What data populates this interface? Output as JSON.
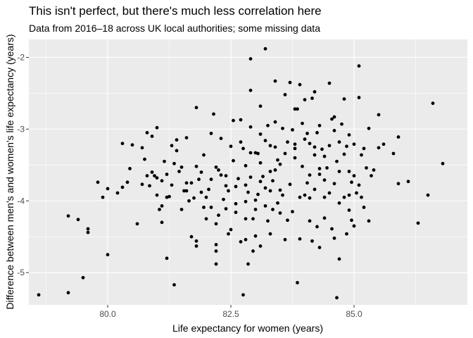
{
  "chart_data": {
    "type": "scatter",
    "title": "This isn't perfect, but there's much less correlation here",
    "subtitle": "Data from 2016–18 across UK local authorities; some missing data",
    "xlabel": "Life expectancy for women (years)",
    "ylabel": "Difference between men's and women's life expectancy (years)",
    "xlim": [
      78.4,
      87.3
    ],
    "ylim": [
      -5.45,
      -1.75
    ],
    "xticks": [
      80.0,
      82.5,
      85.0
    ],
    "xtick_labels": [
      "80.0",
      "82.5",
      "85.0"
    ],
    "yticks": [
      -5,
      -4,
      -3,
      -2
    ],
    "ytick_labels": [
      "-5",
      "-4",
      "-3",
      "-2"
    ],
    "grid": true,
    "legend": "none",
    "points": [
      [
        78.6,
        -5.31
      ],
      [
        79.2,
        -5.28
      ],
      [
        79.5,
        -5.07
      ],
      [
        79.2,
        -4.21
      ],
      [
        79.6,
        -4.39
      ],
      [
        79.6,
        -4.44
      ],
      [
        79.9,
        -3.95
      ],
      [
        79.8,
        -3.74
      ],
      [
        80.0,
        -3.83
      ],
      [
        79.4,
        -4.26
      ],
      [
        80.0,
        -4.75
      ],
      [
        80.2,
        -3.89
      ],
      [
        80.3,
        -3.2
      ],
      [
        80.3,
        -3.81
      ],
      [
        80.4,
        -3.74
      ],
      [
        80.5,
        -3.22
      ],
      [
        80.6,
        -4.32
      ],
      [
        80.7,
        -3.26
      ],
      [
        80.7,
        -3.77
      ],
      [
        80.8,
        -3.05
      ],
      [
        80.8,
        -3.65
      ],
      [
        80.9,
        -3.6
      ],
      [
        80.9,
        -3.1
      ],
      [
        81.0,
        -2.98
      ],
      [
        81.0,
        -3.68
      ],
      [
        81.0,
        -3.92
      ],
      [
        81.1,
        -3.72
      ],
      [
        81.1,
        -4.07
      ],
      [
        81.1,
        -4.3
      ],
      [
        81.2,
        -4.8
      ],
      [
        81.2,
        -3.63
      ],
      [
        81.2,
        -3.95
      ],
      [
        81.3,
        -3.23
      ],
      [
        81.3,
        -3.78
      ],
      [
        81.4,
        -3.15
      ],
      [
        81.4,
        -3.3
      ],
      [
        81.5,
        -4.12
      ],
      [
        81.5,
        -3.53
      ],
      [
        81.6,
        -3.12
      ],
      [
        81.6,
        -3.86
      ],
      [
        81.7,
        -4.5
      ],
      [
        81.7,
        -3.75
      ],
      [
        81.8,
        -2.7
      ],
      [
        81.8,
        -4.56
      ],
      [
        81.9,
        -3.88
      ],
      [
        81.9,
        -3.6
      ],
      [
        82.0,
        -4.25
      ],
      [
        82.0,
        -3.95
      ],
      [
        82.1,
        -3.06
      ],
      [
        82.1,
        -3.7
      ],
      [
        82.1,
        -4.09
      ],
      [
        82.2,
        -4.32
      ],
      [
        82.2,
        -4.7
      ],
      [
        82.2,
        -4.88
      ],
      [
        82.3,
        -3.13
      ],
      [
        82.3,
        -3.64
      ],
      [
        82.4,
        -4.11
      ],
      [
        82.4,
        -3.79
      ],
      [
        82.5,
        -3.24
      ],
      [
        82.5,
        -4.4
      ],
      [
        82.6,
        -3.8
      ],
      [
        82.6,
        -4.04
      ],
      [
        82.7,
        -3.18
      ],
      [
        82.7,
        -4.57
      ],
      [
        82.7,
        -2.87
      ],
      [
        82.8,
        -4.54
      ],
      [
        82.8,
        -3.51
      ],
      [
        82.8,
        -3.78
      ],
      [
        82.8,
        -4.01
      ],
      [
        82.9,
        -2.02
      ],
      [
        82.9,
        -2.46
      ],
      [
        82.9,
        -3.33
      ],
      [
        82.9,
        -3.67
      ],
      [
        83.0,
        -4.12
      ],
      [
        83.0,
        -4.49
      ],
      [
        83.0,
        -3.99
      ],
      [
        83.0,
        -3.33
      ],
      [
        83.1,
        -3.07
      ],
      [
        83.1,
        -2.68
      ],
      [
        83.1,
        -3.73
      ],
      [
        83.1,
        -4.63
      ],
      [
        83.2,
        -3.16
      ],
      [
        83.2,
        -1.88
      ],
      [
        83.2,
        -3.82
      ],
      [
        83.3,
        -3.59
      ],
      [
        83.3,
        -4.46
      ],
      [
        83.3,
        -3.23
      ],
      [
        83.4,
        -2.33
      ],
      [
        83.4,
        -3.25
      ],
      [
        83.4,
        -2.9
      ],
      [
        83.5,
        -3.85
      ],
      [
        83.5,
        -4.17
      ],
      [
        83.5,
        -3.49
      ],
      [
        83.6,
        -3.34
      ],
      [
        83.6,
        -2.52
      ],
      [
        83.6,
        -4.54
      ],
      [
        83.7,
        -3.77
      ],
      [
        83.7,
        -2.35
      ],
      [
        83.8,
        -3.4
      ],
      [
        83.8,
        -2.72
      ],
      [
        83.8,
        -3.21
      ],
      [
        83.9,
        -2.38
      ],
      [
        83.9,
        -3.95
      ],
      [
        83.9,
        -4.53
      ],
      [
        84.0,
        -3.14
      ],
      [
        84.0,
        -3.92
      ],
      [
        84.0,
        -2.59
      ],
      [
        84.1,
        -3.64
      ],
      [
        84.1,
        -3.2
      ],
      [
        84.1,
        -4.28
      ],
      [
        84.2,
        -2.48
      ],
      [
        84.2,
        -3.36
      ],
      [
        84.2,
        -3.84
      ],
      [
        84.3,
        -2.95
      ],
      [
        84.3,
        -4.65
      ],
      [
        84.3,
        -3.55
      ],
      [
        84.4,
        -3.71
      ],
      [
        84.4,
        -3.95
      ],
      [
        84.4,
        -4.24
      ],
      [
        84.5,
        -2.36
      ],
      [
        84.5,
        -3.23
      ],
      [
        84.5,
        -3.89
      ],
      [
        84.6,
        -3.02
      ],
      [
        84.6,
        -4.52
      ],
      [
        84.6,
        -2.83
      ],
      [
        84.7,
        -4.03
      ],
      [
        84.7,
        -3.59
      ],
      [
        84.7,
        -4.81
      ],
      [
        84.8,
        -3.35
      ],
      [
        84.8,
        -2.58
      ],
      [
        84.8,
        -3.95
      ],
      [
        84.9,
        -3.08
      ],
      [
        84.9,
        -3.92
      ],
      [
        84.9,
        -4.13
      ],
      [
        85.0,
        -3.21
      ],
      [
        85.0,
        -3.65
      ],
      [
        85.0,
        -4.35
      ],
      [
        85.1,
        -2.12
      ],
      [
        85.1,
        -2.56
      ],
      [
        85.1,
        -3.78
      ],
      [
        85.2,
        -4.09
      ],
      [
        85.2,
        -3.27
      ],
      [
        85.3,
        -2.99
      ],
      [
        85.3,
        -4.28
      ],
      [
        85.4,
        -3.57
      ],
      [
        85.5,
        -2.8
      ],
      [
        85.5,
        -3.26
      ],
      [
        85.6,
        -3.21
      ],
      [
        85.8,
        -3.34
      ],
      [
        85.9,
        -3.76
      ],
      [
        85.9,
        -3.11
      ],
      [
        86.1,
        -3.73
      ],
      [
        86.3,
        -4.31
      ],
      [
        86.5,
        -3.92
      ],
      [
        86.6,
        -2.64
      ],
      [
        86.8,
        -3.48
      ],
      [
        84.65,
        -5.35
      ],
      [
        83.85,
        -5.14
      ],
      [
        82.75,
        -5.31
      ],
      [
        81.35,
        -5.17
      ],
      [
        81.8,
        -4.63
      ],
      [
        82.2,
        -4.61
      ],
      [
        82.45,
        -4.46
      ],
      [
        82.85,
        -4.88
      ],
      [
        82.95,
        -4.7
      ],
      [
        83.25,
        -4.28
      ],
      [
        83.45,
        -4.03
      ],
      [
        83.75,
        -4.15
      ],
      [
        84.15,
        -4.56
      ],
      [
        84.55,
        -4.39
      ],
      [
        84.95,
        -4.27
      ],
      [
        85.15,
        -3.95
      ],
      [
        84.45,
        -3.54
      ],
      [
        84.05,
        -3.06
      ],
      [
        83.65,
        -3.18
      ],
      [
        83.35,
        -3.72
      ],
      [
        82.65,
        -3.69
      ],
      [
        82.35,
        -3.98
      ],
      [
        82.05,
        -3.84
      ],
      [
        81.75,
        -3.96
      ],
      [
        81.45,
        -3.59
      ],
      [
        81.15,
        -3.45
      ],
      [
        80.85,
        -3.79
      ],
      [
        80.45,
        -3.55
      ],
      [
        81.95,
        -3.36
      ],
      [
        82.25,
        -3.57
      ],
      [
        82.55,
        -3.44
      ],
      [
        82.85,
        -3.88
      ],
      [
        83.15,
        -3.66
      ],
      [
        83.45,
        -3.43
      ],
      [
        83.75,
        -3.01
      ],
      [
        84.05,
        -3.75
      ],
      [
        84.35,
        -3.28
      ],
      [
        84.65,
        -3.45
      ],
      [
        84.95,
        -3.74
      ],
      [
        85.25,
        -3.54
      ],
      [
        83.55,
        -3.92
      ],
      [
        83.05,
        -3.91
      ],
      [
        82.45,
        -3.86
      ],
      [
        81.85,
        -3.7
      ],
      [
        81.55,
        -3.86
      ],
      [
        81.25,
        -3.94
      ],
      [
        80.95,
        -3.65
      ],
      [
        82.75,
        -3.27
      ],
      [
        83.25,
        -2.95
      ],
      [
        83.85,
        -2.72
      ],
      [
        84.25,
        -3.05
      ],
      [
        84.75,
        -2.93
      ],
      [
        84.15,
        -2.57
      ],
      [
        83.95,
        -2.92
      ],
      [
        83.55,
        -2.99
      ],
      [
        83.05,
        -3.34
      ],
      [
        82.55,
        -2.88
      ],
      [
        82.15,
        -2.79
      ],
      [
        84.55,
        -2.86
      ],
      [
        84.85,
        -3.24
      ],
      [
        85.15,
        -3.36
      ],
      [
        83.65,
        -4.27
      ],
      [
        84.25,
        -4.36
      ],
      [
        84.85,
        -4.46
      ],
      [
        85.05,
        -3.89
      ],
      [
        83.35,
        -4.12
      ],
      [
        82.95,
        -4.25
      ],
      [
        82.25,
        -4.2
      ],
      [
        81.95,
        -4.09
      ],
      [
        81.65,
        -4.0
      ],
      [
        81.05,
        -4.12
      ],
      [
        80.75,
        -3.42
      ],
      [
        81.35,
        -3.48
      ],
      [
        83.95,
        -3.52
      ],
      [
        84.3,
        -3.63
      ],
      [
        84.6,
        -3.76
      ],
      [
        84.9,
        -3.59
      ],
      [
        85.35,
        -3.65
      ],
      [
        82.9,
        -2.97
      ],
      [
        83.1,
        -3.47
      ],
      [
        83.3,
        -3.86
      ],
      [
        82.6,
        -4.16
      ],
      [
        82.4,
        -3.65
      ],
      [
        82.2,
        -3.53
      ],
      [
        81.8,
        -3.52
      ],
      [
        81.6,
        -3.75
      ],
      [
        84.4,
        -3.38
      ],
      [
        84.2,
        -3.25
      ],
      [
        83.8,
        -3.27
      ],
      [
        83.4,
        -3.57
      ],
      [
        83.2,
        -4.07
      ],
      [
        82.8,
        -4.25
      ],
      [
        84.7,
        -3.18
      ],
      [
        84.1,
        -3.96
      ]
    ]
  }
}
